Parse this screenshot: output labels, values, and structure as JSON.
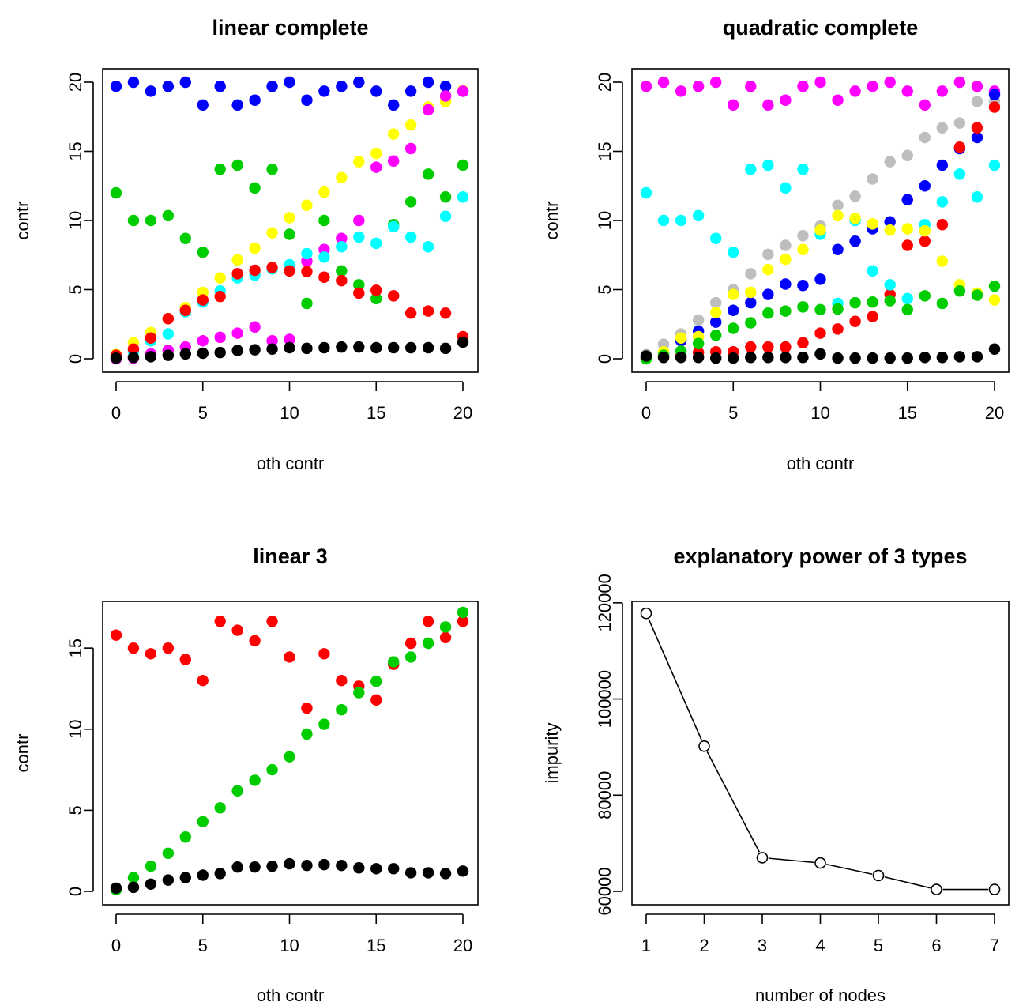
{
  "chart_data": [
    {
      "type": "scatter",
      "title": "linear complete",
      "xlabel": "oth contr",
      "ylabel": "contr",
      "xlim": [
        0,
        20
      ],
      "ylim": [
        0,
        20
      ],
      "xticks": [
        "0",
        "5",
        "10",
        "15",
        "20"
      ],
      "yticks": [
        "0",
        "5",
        "10",
        "15",
        "20"
      ],
      "x": [
        0,
        1,
        2,
        3,
        4,
        5,
        6,
        7,
        8,
        9,
        10,
        11,
        12,
        13,
        14,
        15,
        16,
        17,
        18,
        19,
        20
      ],
      "series": [
        {
          "color": "#0000ff",
          "values": [
            19.7,
            20,
            19.35,
            19.7,
            20,
            18.35,
            19.7,
            18.35,
            18.7,
            19.7,
            20,
            18.7,
            19.35,
            19.7,
            20,
            19.35,
            18.35,
            19.35,
            20,
            19.7,
            19.35
          ]
        },
        {
          "color": "#00cd00",
          "values": [
            12,
            10,
            10,
            10.35,
            8.7,
            7.7,
            13.7,
            14,
            12.35,
            13.7,
            9,
            4,
            10,
            6.35,
            5.35,
            4.35,
            9.7,
            11.35,
            13.35,
            11.7,
            14
          ]
        },
        {
          "color": "#ffff00",
          "values": [
            0.3,
            1.15,
            1.9,
            2.9,
            3.7,
            4.8,
            5.85,
            7.15,
            8,
            9.1,
            10.2,
            11.1,
            12.05,
            13.1,
            14.25,
            14.85,
            16.25,
            16.9,
            18.2,
            18.6,
            19.4
          ]
        },
        {
          "color": "#ff00ff",
          "values": [
            0,
            0.05,
            0.35,
            0.6,
            0.85,
            1.3,
            1.55,
            1.85,
            2.3,
            1.3,
            1.4,
            7.05,
            7.9,
            8.7,
            10,
            13.85,
            14.3,
            15.2,
            18,
            19,
            19.35
          ]
        },
        {
          "color": "#00ffff",
          "values": [
            0.1,
            0.5,
            1.3,
            1.8,
            3.4,
            4.1,
            4.9,
            5.85,
            6.05,
            6.5,
            6.8,
            7.6,
            7.35,
            8.1,
            8.8,
            8.35,
            9.55,
            8.8,
            8.1,
            10.3,
            11.7
          ]
        },
        {
          "color": "#ff0000",
          "values": [
            0.25,
            0.7,
            1.5,
            2.9,
            3.5,
            4.25,
            4.5,
            6.15,
            6.4,
            6.6,
            6.35,
            6.3,
            5.9,
            5.65,
            4.75,
            4.95,
            4.55,
            3.3,
            3.45,
            3.3,
            1.6
          ]
        },
        {
          "color": "#000000",
          "values": [
            0.05,
            0.1,
            0.15,
            0.25,
            0.35,
            0.4,
            0.45,
            0.6,
            0.65,
            0.7,
            0.8,
            0.75,
            0.8,
            0.85,
            0.85,
            0.8,
            0.8,
            0.8,
            0.8,
            0.75,
            1.2
          ]
        }
      ]
    },
    {
      "type": "scatter",
      "title": "quadratic complete",
      "xlabel": "oth contr",
      "ylabel": "contr",
      "xlim": [
        0,
        20
      ],
      "ylim": [
        0,
        20
      ],
      "xticks": [
        "0",
        "5",
        "10",
        "15",
        "20"
      ],
      "yticks": [
        "0",
        "5",
        "10",
        "15",
        "20"
      ],
      "x": [
        0,
        1,
        2,
        3,
        4,
        5,
        6,
        7,
        8,
        9,
        10,
        11,
        12,
        13,
        14,
        15,
        16,
        17,
        18,
        19,
        20
      ],
      "series": [
        {
          "color": "#ff00ff",
          "values": [
            19.7,
            20,
            19.35,
            19.7,
            20,
            18.35,
            19.7,
            18.35,
            18.7,
            19.7,
            20,
            18.7,
            19.35,
            19.7,
            20,
            19.35,
            18.35,
            19.35,
            20,
            19.7,
            19.35
          ]
        },
        {
          "color": "#bebebe",
          "values": [
            0.3,
            1.05,
            1.8,
            2.8,
            4.05,
            5,
            6.15,
            7.55,
            8.2,
            8.9,
            9.6,
            11.1,
            11.75,
            13,
            14.25,
            14.7,
            16,
            16.7,
            17.05,
            18.6,
            18.65
          ]
        },
        {
          "color": "#0000ff",
          "values": [
            0.1,
            0.4,
            1.3,
            2,
            2.65,
            3.5,
            4.05,
            4.65,
            5.4,
            5.3,
            5.75,
            7.9,
            8.5,
            9.4,
            9.9,
            11.5,
            12.5,
            14,
            15.2,
            16,
            19.1
          ]
        },
        {
          "color": "#ff0000",
          "values": [
            0.05,
            0.1,
            0.2,
            0.45,
            0.5,
            0.5,
            0.85,
            0.85,
            0.85,
            1.15,
            1.85,
            2.15,
            2.7,
            3.05,
            4.65,
            8.2,
            8.5,
            9.7,
            15.3,
            16.7,
            18.2
          ]
        },
        {
          "color": "#00ffff",
          "values": [
            12,
            10,
            10,
            10.35,
            8.7,
            7.7,
            13.7,
            14,
            12.35,
            13.7,
            9,
            4,
            10,
            6.35,
            5.35,
            4.35,
            9.7,
            11.35,
            13.35,
            11.7,
            14
          ]
        },
        {
          "color": "#ffff00",
          "values": [
            0,
            0.5,
            1.5,
            1.6,
            3.35,
            4.65,
            4.8,
            6.45,
            7.2,
            7.9,
            9.3,
            10.35,
            10.15,
            9.75,
            9.3,
            9.4,
            9.25,
            7.05,
            5.35,
            4.75,
            4.25
          ]
        },
        {
          "color": "#00cd00",
          "values": [
            0,
            0.25,
            0.55,
            1.1,
            1.7,
            2.2,
            2.6,
            3.3,
            3.45,
            3.75,
            3.55,
            3.6,
            4.05,
            4.1,
            4.2,
            3.55,
            4.55,
            4,
            4.9,
            4.6,
            5.25
          ]
        },
        {
          "color": "#000000",
          "values": [
            0.2,
            0.1,
            0.1,
            0.1,
            0.05,
            0.05,
            0.1,
            0.1,
            0.1,
            0.1,
            0.35,
            0.05,
            0.05,
            0.05,
            0.05,
            0.05,
            0.1,
            0.1,
            0.15,
            0.15,
            0.7
          ]
        }
      ]
    },
    {
      "type": "scatter",
      "title": "linear 3",
      "xlabel": "oth contr",
      "ylabel": "contr",
      "xlim": [
        0,
        20
      ],
      "ylim": [
        0,
        17.2
      ],
      "xticks": [
        "0",
        "5",
        "10",
        "15",
        "20"
      ],
      "yticks": [
        "0",
        "5",
        "10",
        "15"
      ],
      "x": [
        0,
        1,
        2,
        3,
        4,
        5,
        6,
        7,
        8,
        9,
        10,
        11,
        12,
        13,
        14,
        15,
        16,
        17,
        18,
        19,
        20
      ],
      "series": [
        {
          "color": "#ff0000",
          "values": [
            15.8,
            15,
            14.65,
            15,
            14.3,
            13,
            16.65,
            16.1,
            15.45,
            16.65,
            14.45,
            11.3,
            14.65,
            13,
            12.65,
            11.8,
            14,
            15.3,
            16.65,
            15.65,
            16.65
          ]
        },
        {
          "color": "#00cd00",
          "values": [
            0.1,
            0.85,
            1.55,
            2.35,
            3.35,
            4.3,
            5.15,
            6.2,
            6.85,
            7.5,
            8.3,
            9.7,
            10.3,
            11.2,
            12.25,
            12.95,
            14.15,
            14.45,
            15.3,
            16.3,
            17.2
          ]
        },
        {
          "color": "#000000",
          "values": [
            0.2,
            0.25,
            0.45,
            0.7,
            0.85,
            1,
            1.1,
            1.5,
            1.5,
            1.55,
            1.7,
            1.6,
            1.65,
            1.6,
            1.45,
            1.4,
            1.4,
            1.15,
            1.15,
            1.1,
            1.25
          ]
        }
      ]
    },
    {
      "type": "line",
      "title": "explanatory power of 3 types",
      "xlabel": "number of nodes",
      "ylabel": "impurity",
      "xlim": [
        1,
        7
      ],
      "ylim": [
        60000,
        118000
      ],
      "xticks": [
        "1",
        "2",
        "3",
        "4",
        "5",
        "6",
        "7"
      ],
      "yticks": [
        "60000",
        "80000",
        "100000",
        "120000"
      ],
      "x": [
        1,
        2,
        3,
        4,
        5,
        6,
        7
      ],
      "series": [
        {
          "color": "#000000",
          "values": [
            117800,
            90200,
            67000,
            65900,
            63300,
            60400,
            60400
          ]
        }
      ]
    }
  ]
}
